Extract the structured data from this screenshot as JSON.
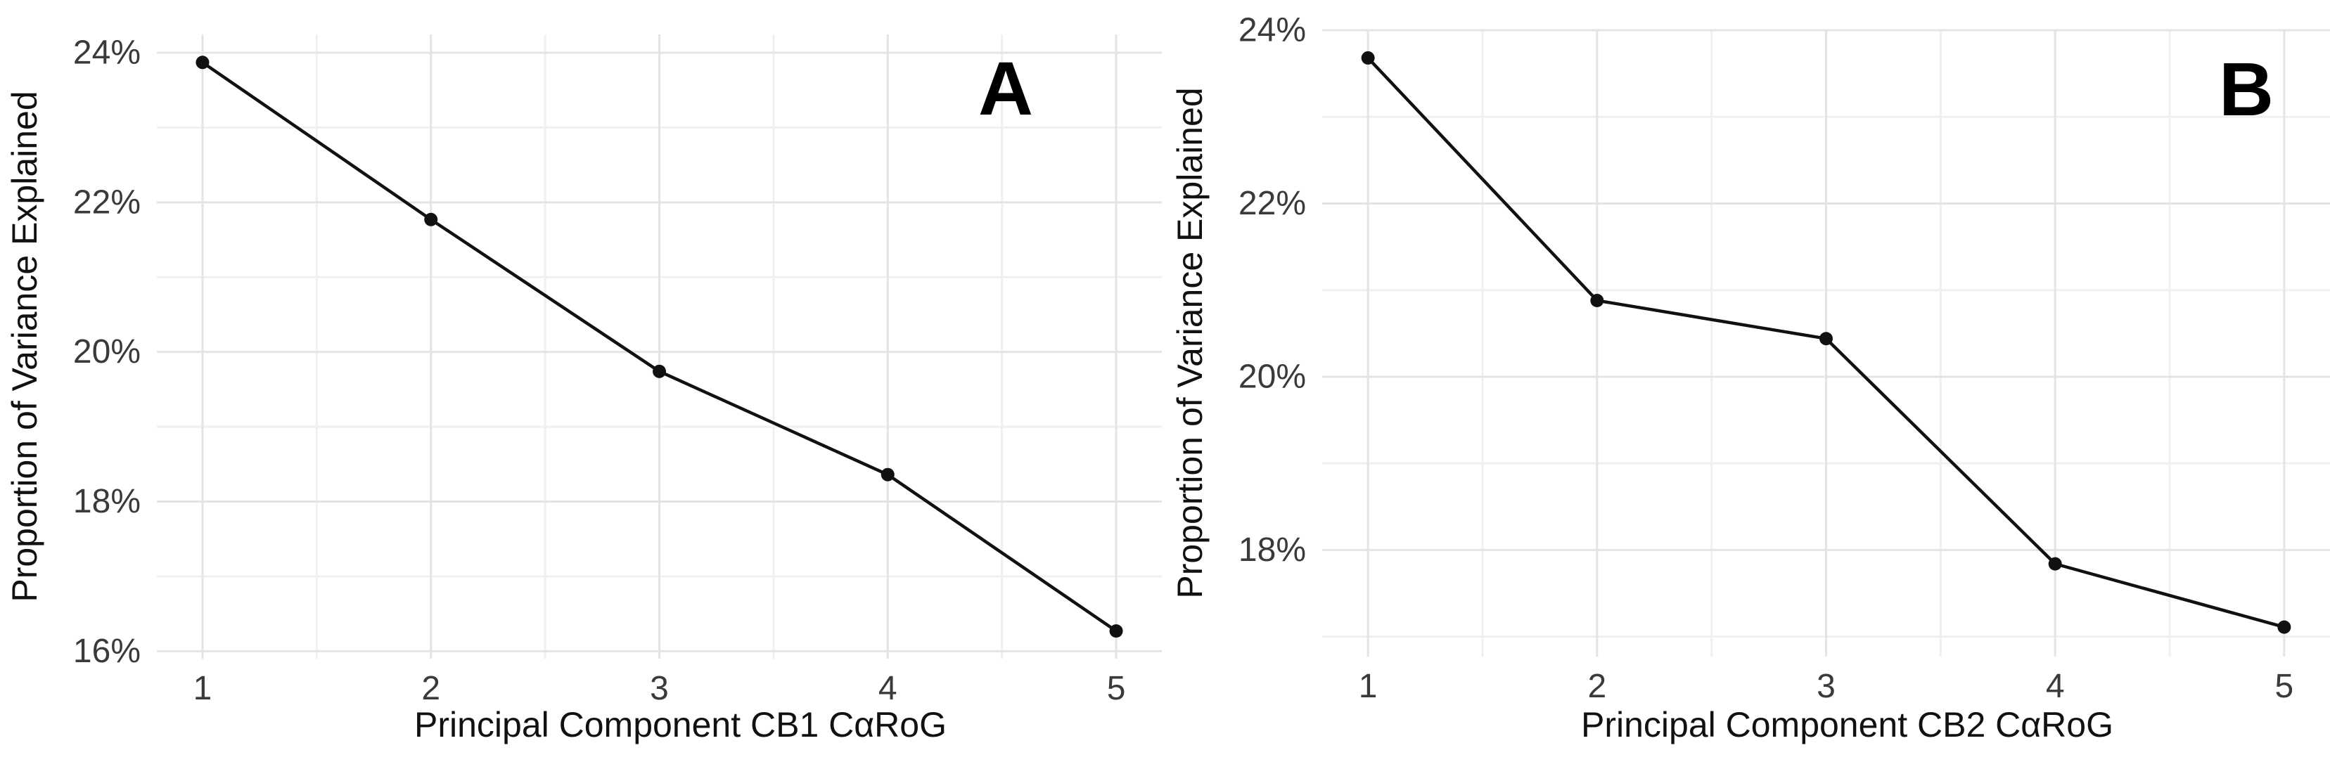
{
  "figure": {
    "background_color": "#ffffff",
    "description": "Two-panel scree plot figure"
  },
  "chart_data": [
    {
      "type": "line",
      "panel_label": "A",
      "title": "",
      "xlabel": "Principal Component CB1 CαRoG",
      "ylabel": "Proportion of Variance Explained",
      "x": [
        1,
        2,
        3,
        4,
        5
      ],
      "values": [
        23.87,
        21.77,
        19.74,
        18.36,
        16.27
      ],
      "x_ticks": [
        1,
        2,
        3,
        4,
        5
      ],
      "x_tick_labels": [
        "1",
        "2",
        "3",
        "4",
        "5"
      ],
      "y_ticks": [
        16,
        18,
        20,
        22,
        24
      ],
      "y_tick_labels": [
        "16%",
        "18%",
        "20%",
        "22%",
        "24%"
      ],
      "y_minor_ticks": [
        17,
        19,
        21,
        23
      ],
      "x_minor_ticks": [
        1.5,
        2.5,
        3.5,
        4.5
      ],
      "xlim": [
        0.8,
        5.2
      ],
      "ylim": [
        15.9,
        24.244
      ],
      "grid": true,
      "legend": "none",
      "line_color": "#111111",
      "point_color": "#111111",
      "grid_major_color": "#e4e4e4",
      "grid_minor_color": "#f0f0f0",
      "tick_text_color": "#3a3a3a",
      "axis_title_color": "#111111",
      "panel_label_color": "#000000"
    },
    {
      "type": "line",
      "panel_label": "B",
      "title": "",
      "xlabel": "Principal Component CB2 CαRoG",
      "ylabel": "Proportion of Variance Explained",
      "x": [
        1,
        2,
        3,
        4,
        5
      ],
      "values": [
        23.68,
        20.88,
        20.44,
        17.84,
        17.11
      ],
      "x_ticks": [
        1,
        2,
        3,
        4,
        5
      ],
      "x_tick_labels": [
        "1",
        "2",
        "3",
        "4",
        "5"
      ],
      "y_ticks": [
        18,
        20,
        22,
        24
      ],
      "y_tick_labels": [
        "18%",
        "20%",
        "22%",
        "24%"
      ],
      "y_minor_ticks": [
        17,
        19,
        21,
        23
      ],
      "x_minor_ticks": [
        1.5,
        2.5,
        3.5,
        4.5
      ],
      "xlim": [
        0.8,
        5.2
      ],
      "ylim": [
        16.77,
        24.008
      ],
      "grid": true,
      "legend": "none",
      "line_color": "#111111",
      "point_color": "#111111",
      "grid_major_color": "#e4e4e4",
      "grid_minor_color": "#f0f0f0",
      "tick_text_color": "#3a3a3a",
      "axis_title_color": "#111111",
      "panel_label_color": "#000000"
    }
  ]
}
